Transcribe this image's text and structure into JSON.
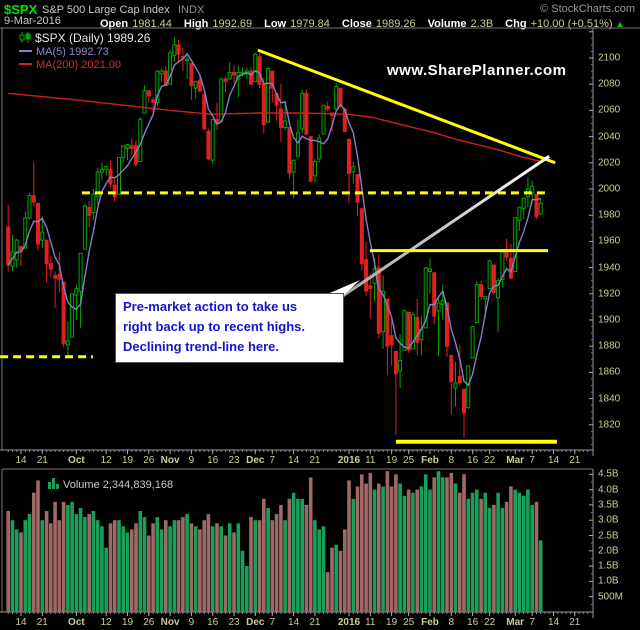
{
  "header": {
    "symbol": "$SPX",
    "name": "S&P 500 Large Cap Index",
    "exchange": "INDX",
    "copyright": "© StockCharts.com",
    "date": "9-Mar-2016",
    "fields": [
      {
        "label": "Open",
        "value": "1981.44"
      },
      {
        "label": "High",
        "value": "1992.69"
      },
      {
        "label": "Low",
        "value": "1979.84"
      },
      {
        "label": "Close",
        "value": "1989.26"
      },
      {
        "label": "Volume",
        "value": "2.3B"
      },
      {
        "label": "Chg",
        "value": "+10.00 (+0.51%)"
      }
    ],
    "chg_arrow": "▲"
  },
  "legend": {
    "title": "$SPX (Daily) 1989.26",
    "ma5": "MA(5) 1992.73",
    "ma200": "MA(200) 2021.00"
  },
  "watermark": "www.SharePlanner.com",
  "annotation": {
    "lines": [
      "Pre-market action to take us",
      "right back up to recent highs.",
      "Declining trend-line here."
    ]
  },
  "volume_legend": "Volume 2,344,839,168",
  "colors": {
    "up": "#00A800",
    "down": "#E02020",
    "ma5": "#8080CC",
    "ma200": "#CC2020",
    "vol_up": "#18A05A",
    "vol_down": "#A06868",
    "trend_yellow": "#FFFF00",
    "axis_text": "#CCCC99",
    "annotation_text": "#1414CC",
    "frame": "#8A8A8A"
  },
  "chart_data": {
    "type": "candlestick+volume",
    "title": "$SPX (Daily)",
    "price_axis": {
      "tick_values": [
        2100,
        2080,
        2060,
        2040,
        2020,
        2000,
        1980,
        1960,
        1940,
        1920,
        1900,
        1880,
        1860,
        1840,
        1820
      ],
      "min": 1800,
      "max": 2123
    },
    "volume_axis": {
      "ticks": [
        {
          "label": "4.5B",
          "v": 4.5
        },
        {
          "label": "4.0B",
          "v": 4.0
        },
        {
          "label": "3.5B",
          "v": 3.5
        },
        {
          "label": "3.0B",
          "v": 3.0
        },
        {
          "label": "2.5B",
          "v": 2.5
        },
        {
          "label": "2.0B",
          "v": 2.0
        },
        {
          "label": "1.5B",
          "v": 1.5
        },
        {
          "label": "1.0B",
          "v": 1.0
        },
        {
          "label": "500M",
          "v": 0.5
        }
      ]
    },
    "date_ticks": [
      {
        "label": "14",
        "slot": 0
      },
      {
        "label": "21",
        "slot": 5
      },
      {
        "label": "Oct",
        "slot": 13,
        "bold": true
      },
      {
        "label": "12",
        "slot": 20
      },
      {
        "label": "19",
        "slot": 25
      },
      {
        "label": "26",
        "slot": 30
      },
      {
        "label": "Nov",
        "slot": 35,
        "bold": true
      },
      {
        "label": "9",
        "slot": 40
      },
      {
        "label": "16",
        "slot": 45
      },
      {
        "label": "23",
        "slot": 50
      },
      {
        "label": "Dec",
        "slot": 55,
        "bold": true
      },
      {
        "label": "7",
        "slot": 59
      },
      {
        "label": "14",
        "slot": 64
      },
      {
        "label": "21",
        "slot": 69
      },
      {
        "label": "2016",
        "slot": 77,
        "bold": true
      },
      {
        "label": "11",
        "slot": 82
      },
      {
        "label": "19",
        "slot": 87
      },
      {
        "label": "25",
        "slot": 91
      },
      {
        "label": "Feb",
        "slot": 96,
        "bold": true
      },
      {
        "label": "8",
        "slot": 101
      },
      {
        "label": "16",
        "slot": 106
      },
      {
        "label": "22",
        "slot": 110
      },
      {
        "label": "Mar",
        "slot": 116,
        "bold": true
      },
      {
        "label": "7",
        "slot": 120
      },
      {
        "label": "14",
        "slot": 125
      },
      {
        "label": "21",
        "slot": 130
      }
    ],
    "first_bar_slot": -3,
    "candles": [
      [
        1971,
        1988,
        1937,
        1942
      ],
      [
        1941,
        1965,
        1937,
        1952
      ],
      [
        1946,
        1962,
        1940,
        1961
      ],
      [
        1956,
        1957,
        1941,
        1953
      ],
      [
        1955,
        1983,
        1954,
        1978
      ],
      [
        1978,
        1997,
        1977,
        1995
      ],
      [
        1995,
        2021,
        1986,
        1990
      ],
      [
        1989,
        1989,
        1953,
        1958
      ],
      [
        1961,
        1979,
        1955,
        1967
      ],
      [
        1961,
        1961,
        1929,
        1943
      ],
      [
        1943,
        1949,
        1932,
        1939
      ],
      [
        1934,
        1937,
        1909,
        1932
      ],
      [
        1935,
        1952,
        1921,
        1931
      ],
      [
        1929,
        1929,
        1879,
        1882
      ],
      [
        1881,
        1899,
        1871,
        1884
      ],
      [
        1887,
        1920,
        1887,
        1920
      ],
      [
        1919,
        1927,
        1900,
        1924
      ],
      [
        1922,
        1951,
        1894,
        1951
      ],
      [
        1954,
        1989,
        1954,
        1987
      ],
      [
        1986,
        1991,
        1971,
        1980
      ],
      [
        1982,
        2000,
        1976,
        1996
      ],
      [
        1994,
        2016,
        1988,
        2013
      ],
      [
        2013,
        2020,
        2007,
        2015
      ],
      [
        2015,
        2018,
        2010,
        2017
      ],
      [
        2015,
        2022,
        2001,
        2004
      ],
      [
        2003,
        2009,
        1990,
        1994
      ],
      [
        1996,
        2024,
        1996,
        2024
      ],
      [
        2024,
        2033,
        2020,
        2033
      ],
      [
        2031,
        2034,
        2022,
        2034
      ],
      [
        2033,
        2039,
        2026,
        2031
      ],
      [
        2033,
        2037,
        2017,
        2019
      ],
      [
        2021,
        2055,
        2021,
        2053
      ],
      [
        2058,
        2079,
        2058,
        2075
      ],
      [
        2075,
        2076,
        2066,
        2071
      ],
      [
        2068,
        2070,
        2058,
        2066
      ],
      [
        2066,
        2090,
        2063,
        2090
      ],
      [
        2088,
        2092,
        2082,
        2090
      ],
      [
        2090,
        2094,
        2079,
        2079
      ],
      [
        2080,
        2106,
        2080,
        2104
      ],
      [
        2102,
        2116,
        2097,
        2110
      ],
      [
        2110,
        2114,
        2096,
        2103
      ],
      [
        2101,
        2108,
        2090,
        2100
      ],
      [
        2098,
        2102,
        2084,
        2099
      ],
      [
        2096,
        2096,
        2068,
        2079
      ],
      [
        2077,
        2083,
        2069,
        2082
      ],
      [
        2083,
        2086,
        2074,
        2075
      ],
      [
        2072,
        2072,
        2045,
        2046
      ],
      [
        2044,
        2046,
        2022,
        2023
      ],
      [
        2022,
        2053,
        2019,
        2053
      ],
      [
        2053,
        2066,
        2045,
        2050
      ],
      [
        2052,
        2085,
        2052,
        2084
      ],
      [
        2084,
        2086,
        2074,
        2082
      ],
      [
        2084,
        2097,
        2084,
        2089
      ],
      [
        2089,
        2095,
        2081,
        2087
      ],
      [
        2084,
        2094,
        2070,
        2089
      ],
      [
        2089,
        2093,
        2086,
        2089
      ],
      [
        2088,
        2093,
        2084,
        2090
      ],
      [
        2090,
        2093,
        2080,
        2080
      ],
      [
        2082,
        2104,
        2082,
        2103
      ],
      [
        2101,
        2104,
        2077,
        2080
      ],
      [
        2080,
        2085,
        2042,
        2049
      ],
      [
        2051,
        2093,
        2051,
        2092
      ],
      [
        2090,
        2090,
        2066,
        2077
      ],
      [
        2073,
        2073,
        2052,
        2064
      ],
      [
        2061,
        2080,
        2036,
        2047
      ],
      [
        2047,
        2067,
        2045,
        2052
      ],
      [
        2047,
        2047,
        2008,
        2012
      ],
      [
        2013,
        2022,
        1993,
        2022
      ],
      [
        2025,
        2053,
        2025,
        2043
      ],
      [
        2046,
        2076,
        2042,
        2073
      ],
      [
        2073,
        2076,
        2041,
        2042
      ],
      [
        2040,
        2040,
        2005,
        2006
      ],
      [
        2010,
        2023,
        2005,
        2021
      ],
      [
        2023,
        2042,
        2020,
        2039
      ],
      [
        2042,
        2064,
        2042,
        2064
      ],
      [
        2063,
        2067,
        2059,
        2061
      ],
      [
        2058,
        2058,
        2044,
        2056
      ],
      [
        2061,
        2081,
        2061,
        2078
      ],
      [
        2077,
        2077,
        2062,
        2063
      ],
      [
        2061,
        2062,
        2044,
        2044
      ],
      [
        2038,
        2038,
        1989,
        2012
      ],
      [
        2013,
        2021,
        2004,
        2017
      ],
      [
        2011,
        2011,
        1979,
        1990
      ],
      [
        1985,
        1985,
        1938,
        1943
      ],
      [
        1946,
        1960,
        1918,
        1922
      ],
      [
        1926,
        1935,
        1901,
        1924
      ],
      [
        1928,
        1947,
        1914,
        1939
      ],
      [
        1940,
        1950,
        1886,
        1890
      ],
      [
        1891,
        1934,
        1878,
        1922
      ],
      [
        1916,
        1916,
        1858,
        1880
      ],
      [
        1888,
        1901,
        1865,
        1881
      ],
      [
        1876,
        1876,
        1812,
        1859
      ],
      [
        1861,
        1889,
        1848,
        1869
      ],
      [
        1877,
        1908,
        1877,
        1907
      ],
      [
        1906,
        1906,
        1875,
        1877
      ],
      [
        1878,
        1906,
        1878,
        1904
      ],
      [
        1902,
        1916,
        1873,
        1883
      ],
      [
        1885,
        1903,
        1873,
        1893
      ],
      [
        1894,
        1940,
        1894,
        1940
      ],
      [
        1937,
        1947,
        1920,
        1939
      ],
      [
        1936,
        1936,
        1897,
        1903
      ],
      [
        1907,
        1918,
        1872,
        1913
      ],
      [
        1912,
        1927,
        1900,
        1915
      ],
      [
        1913,
        1913,
        1872,
        1880
      ],
      [
        1873,
        1873,
        1828,
        1853
      ],
      [
        1848,
        1868,
        1834,
        1852
      ],
      [
        1857,
        1881,
        1850,
        1852
      ],
      [
        1847,
        1847,
        1810,
        1829
      ],
      [
        1833,
        1864,
        1833,
        1865
      ],
      [
        1871,
        1895,
        1871,
        1895
      ],
      [
        1898,
        1930,
        1898,
        1927
      ],
      [
        1927,
        1930,
        1915,
        1918
      ],
      [
        1916,
        1918,
        1902,
        1918
      ],
      [
        1924,
        1946,
        1924,
        1945
      ],
      [
        1942,
        1942,
        1919,
        1921
      ],
      [
        1917,
        1932,
        1891,
        1930
      ],
      [
        1931,
        1952,
        1925,
        1952
      ],
      [
        1954,
        1962,
        1945,
        1948
      ],
      [
        1947,
        1958,
        1931,
        1932
      ],
      [
        1937,
        1978,
        1937,
        1978
      ],
      [
        1976,
        1986,
        1968,
        1986
      ],
      [
        1985,
        1993,
        1977,
        1993
      ],
      [
        1994,
        2009,
        1986,
        2000
      ],
      [
        1997,
        2006,
        1989,
        2002
      ],
      [
        1996,
        1996,
        1977,
        1979
      ],
      [
        1981,
        1993,
        1980,
        1989
      ]
    ],
    "volumes": [
      3.3,
      3.0,
      2.7,
      2.6,
      3.0,
      3.2,
      3.9,
      4.3,
      3.0,
      3.3,
      2.9,
      3.6,
      3.0,
      3.6,
      3.5,
      3.6,
      3.2,
      3.4,
      3.1,
      3.2,
      3.3,
      3.0,
      2.8,
      2.1,
      2.9,
      3.0,
      3.0,
      2.8,
      2.6,
      2.7,
      2.9,
      3.3,
      3.1,
      2.5,
      2.9,
      3.1,
      2.7,
      3.0,
      2.8,
      3.0,
      3.0,
      3.1,
      3.2,
      2.9,
      2.8,
      2.7,
      3.0,
      3.2,
      2.8,
      2.9,
      2.8,
      2.5,
      2.9,
      2.6,
      2.9,
      2.0,
      1.5,
      3.1,
      3.0,
      3.0,
      3.7,
      3.4,
      3.0,
      3.2,
      3.5,
      3.0,
      3.7,
      3.9,
      3.7,
      3.7,
      3.5,
      4.4,
      3.0,
      2.7,
      2.8,
      1.3,
      2.1,
      2.2,
      2.0,
      2.7,
      4.3,
      3.7,
      4.1,
      4.5,
      4.2,
      4.55,
      4.0,
      4.2,
      4.1,
      4.6,
      4.1,
      4.5,
      4.2,
      3.8,
      4.0,
      3.9,
      4.0,
      4.1,
      4.5,
      4.0,
      4.4,
      4.6,
      4.4,
      4.4,
      4.55,
      4.2,
      3.9,
      4.5,
      3.7,
      3.9,
      4.0,
      3.7,
      3.9,
      3.4,
      3.5,
      3.9,
      3.4,
      3.6,
      4.1,
      4.0,
      3.9,
      3.8,
      4.0,
      3.5,
      3.6,
      2.34
    ],
    "ma200_keypoints": [
      [
        0,
        2073
      ],
      [
        16,
        2068
      ],
      [
        38,
        2060
      ],
      [
        48,
        2057
      ],
      [
        58,
        2058
      ],
      [
        70,
        2058
      ],
      [
        80,
        2057
      ],
      [
        85,
        2055
      ],
      [
        90,
        2051
      ],
      [
        95,
        2047
      ],
      [
        100,
        2043
      ],
      [
        105,
        2038
      ],
      [
        110,
        2034
      ],
      [
        115,
        2030
      ],
      [
        120,
        2025
      ],
      [
        125,
        2021
      ]
    ],
    "trendlines": [
      {
        "kind": "line",
        "s1": 55.6,
        "p1": 2106,
        "s2": 125.4,
        "p2": 2020,
        "color": "yellow",
        "width": 3
      },
      {
        "kind": "line",
        "s1": 54,
        "p1": 1871,
        "s2": 124,
        "p2": 2025,
        "color": "white-gradient",
        "width": 3
      },
      {
        "kind": "hline",
        "price": 1997,
        "s1": 14.3,
        "s2": 123.5,
        "color": "yellow",
        "width": 3,
        "dash": "8,5"
      },
      {
        "kind": "hline",
        "price": 1872,
        "s1": -4.9,
        "s2": 16.9,
        "color": "yellow",
        "width": 3,
        "dash": "8,5"
      },
      {
        "kind": "hline",
        "price": 1953,
        "s1": 81.9,
        "s2": 123.7,
        "color": "yellow",
        "width": 3
      },
      {
        "kind": "hline",
        "price": 1807,
        "s1": 88,
        "s2": 125.8,
        "color": "yellow",
        "width": 4
      }
    ]
  }
}
